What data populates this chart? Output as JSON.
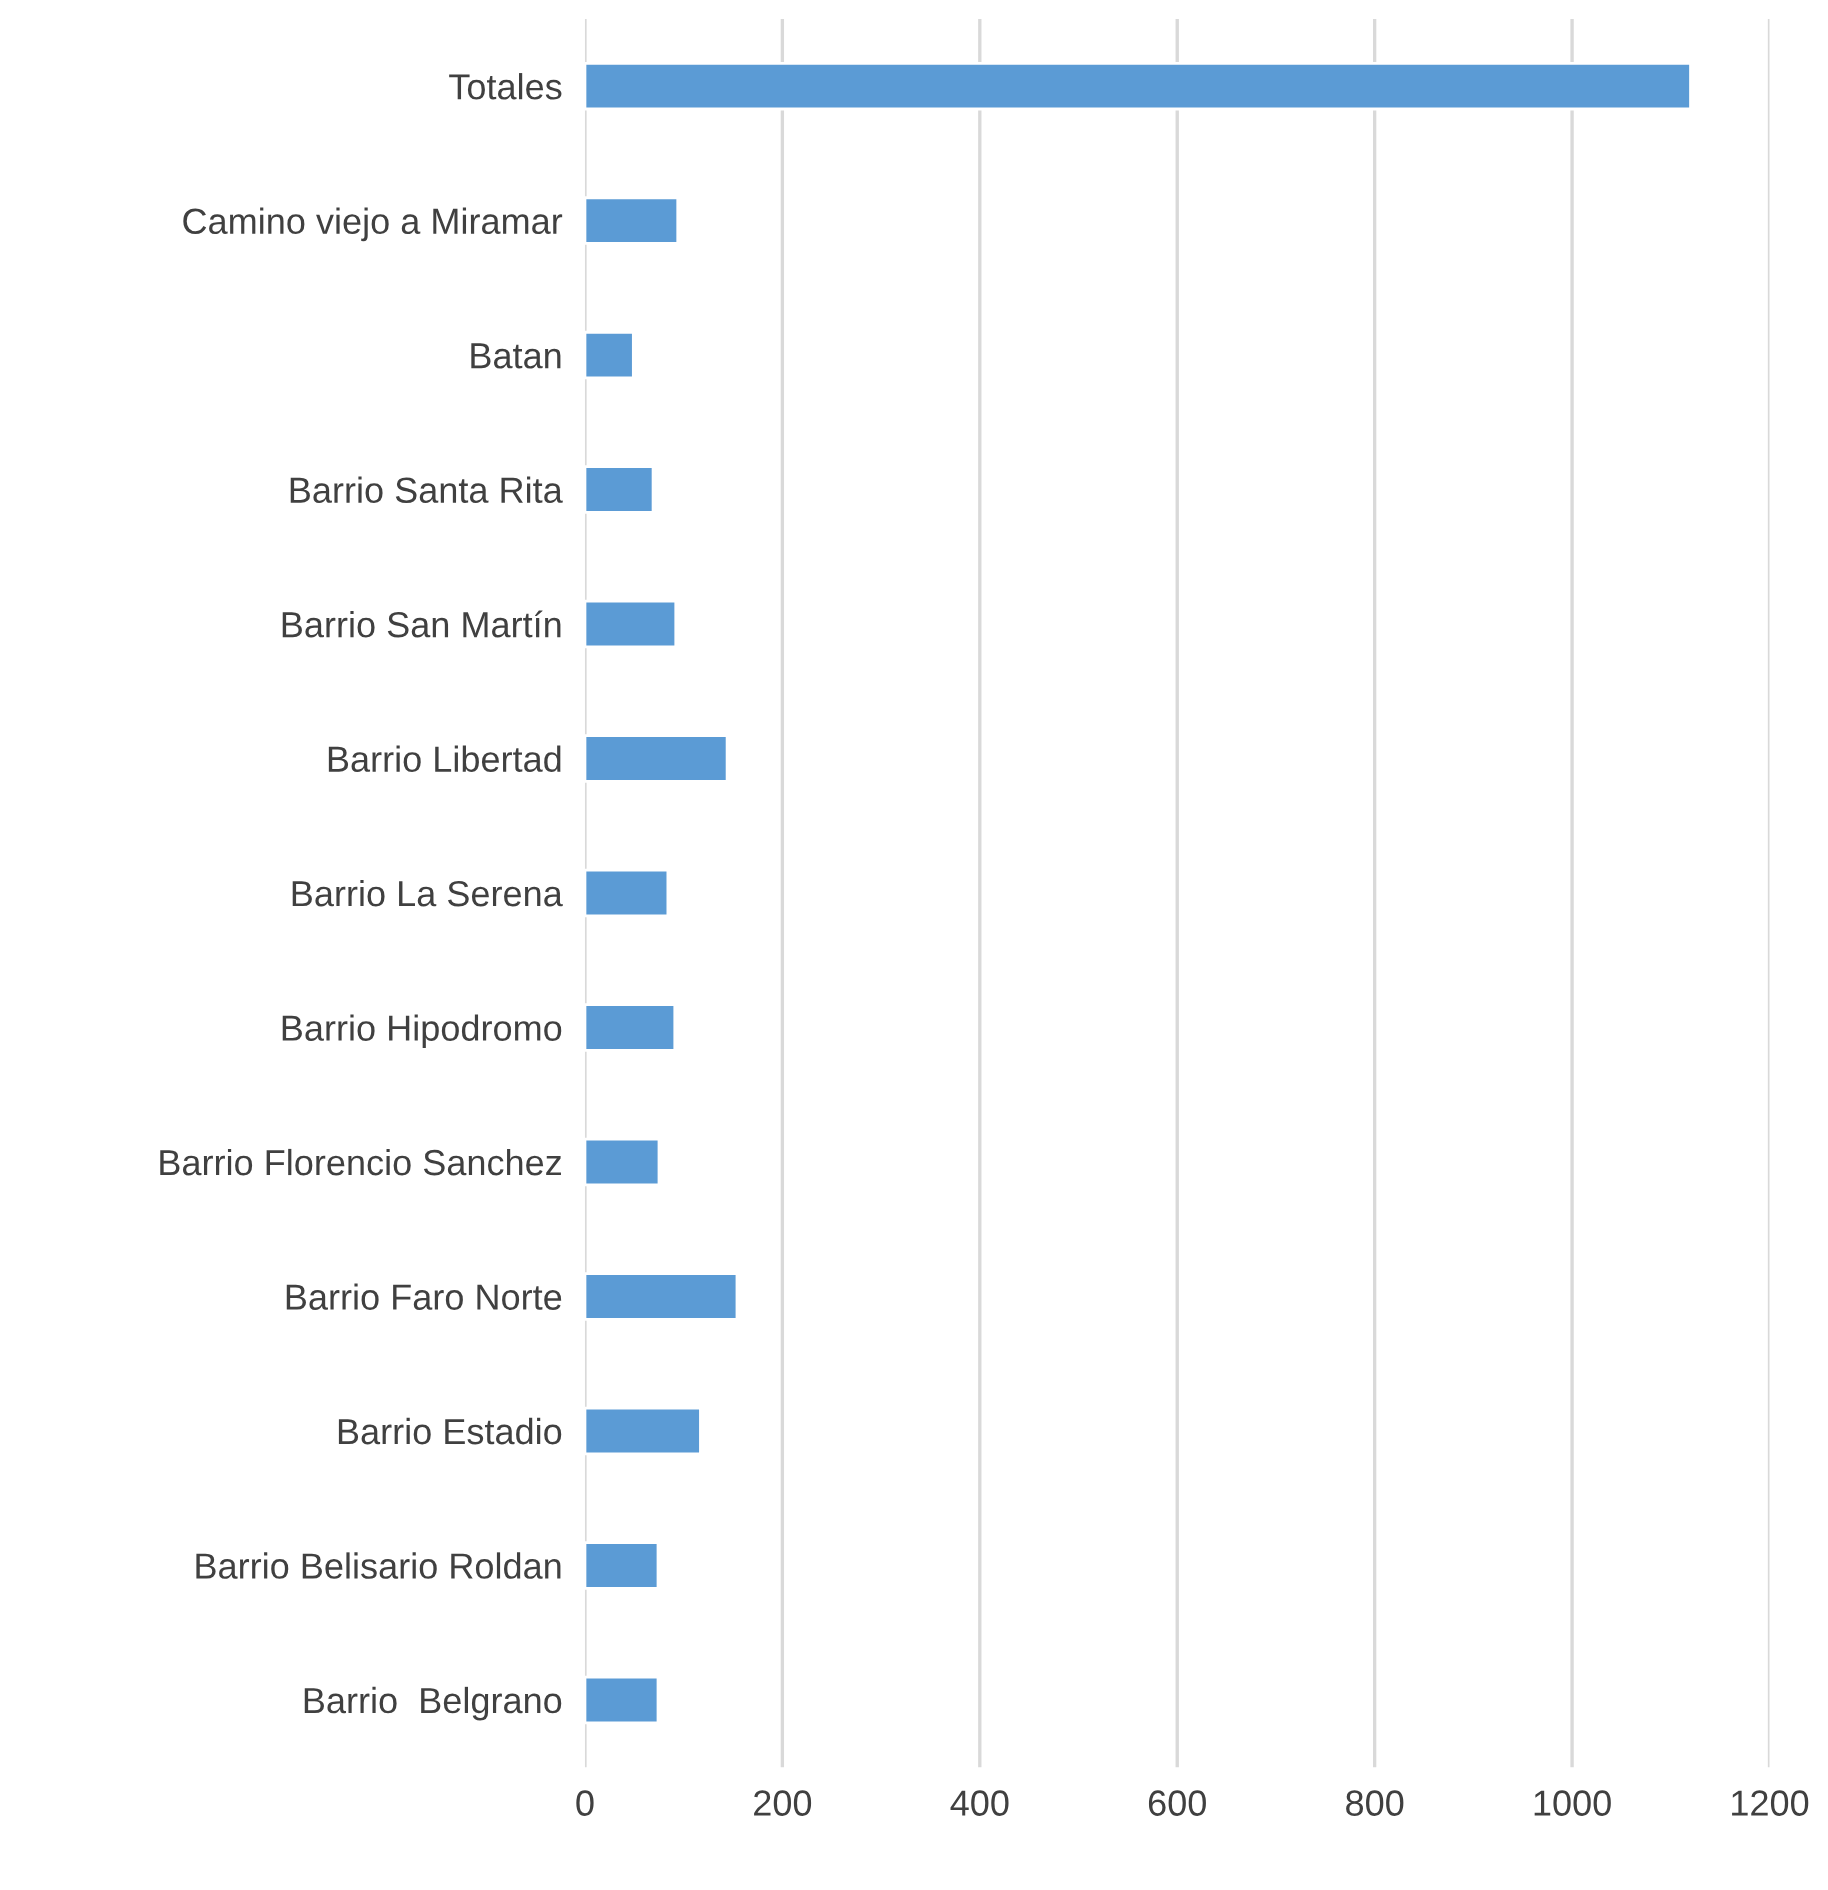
{
  "chart_data": {
    "type": "bar",
    "orientation": "horizontal",
    "categories": [
      "Totales",
      "Camino viejo a Miramar",
      "Batan",
      "Barrio Santa Rita",
      "Barrio San Martín",
      "Barrio Libertad",
      "Barrio La Serena",
      "Barrio Hipodromo",
      "Barrio Florencio Sanchez",
      "Barrio Faro Norte",
      "Barrio Estadio",
      "Barrio Belisario Roldan",
      "Barrio  Belgrano"
    ],
    "values": [
      1120,
      94,
      49,
      69,
      92,
      144,
      84,
      91,
      75,
      154,
      117,
      74,
      74
    ],
    "color": "#5b9bd5",
    "xlim": [
      0,
      1200
    ],
    "xticks": [
      0,
      200,
      400,
      600,
      800,
      1000,
      1200
    ],
    "grid": "x"
  }
}
